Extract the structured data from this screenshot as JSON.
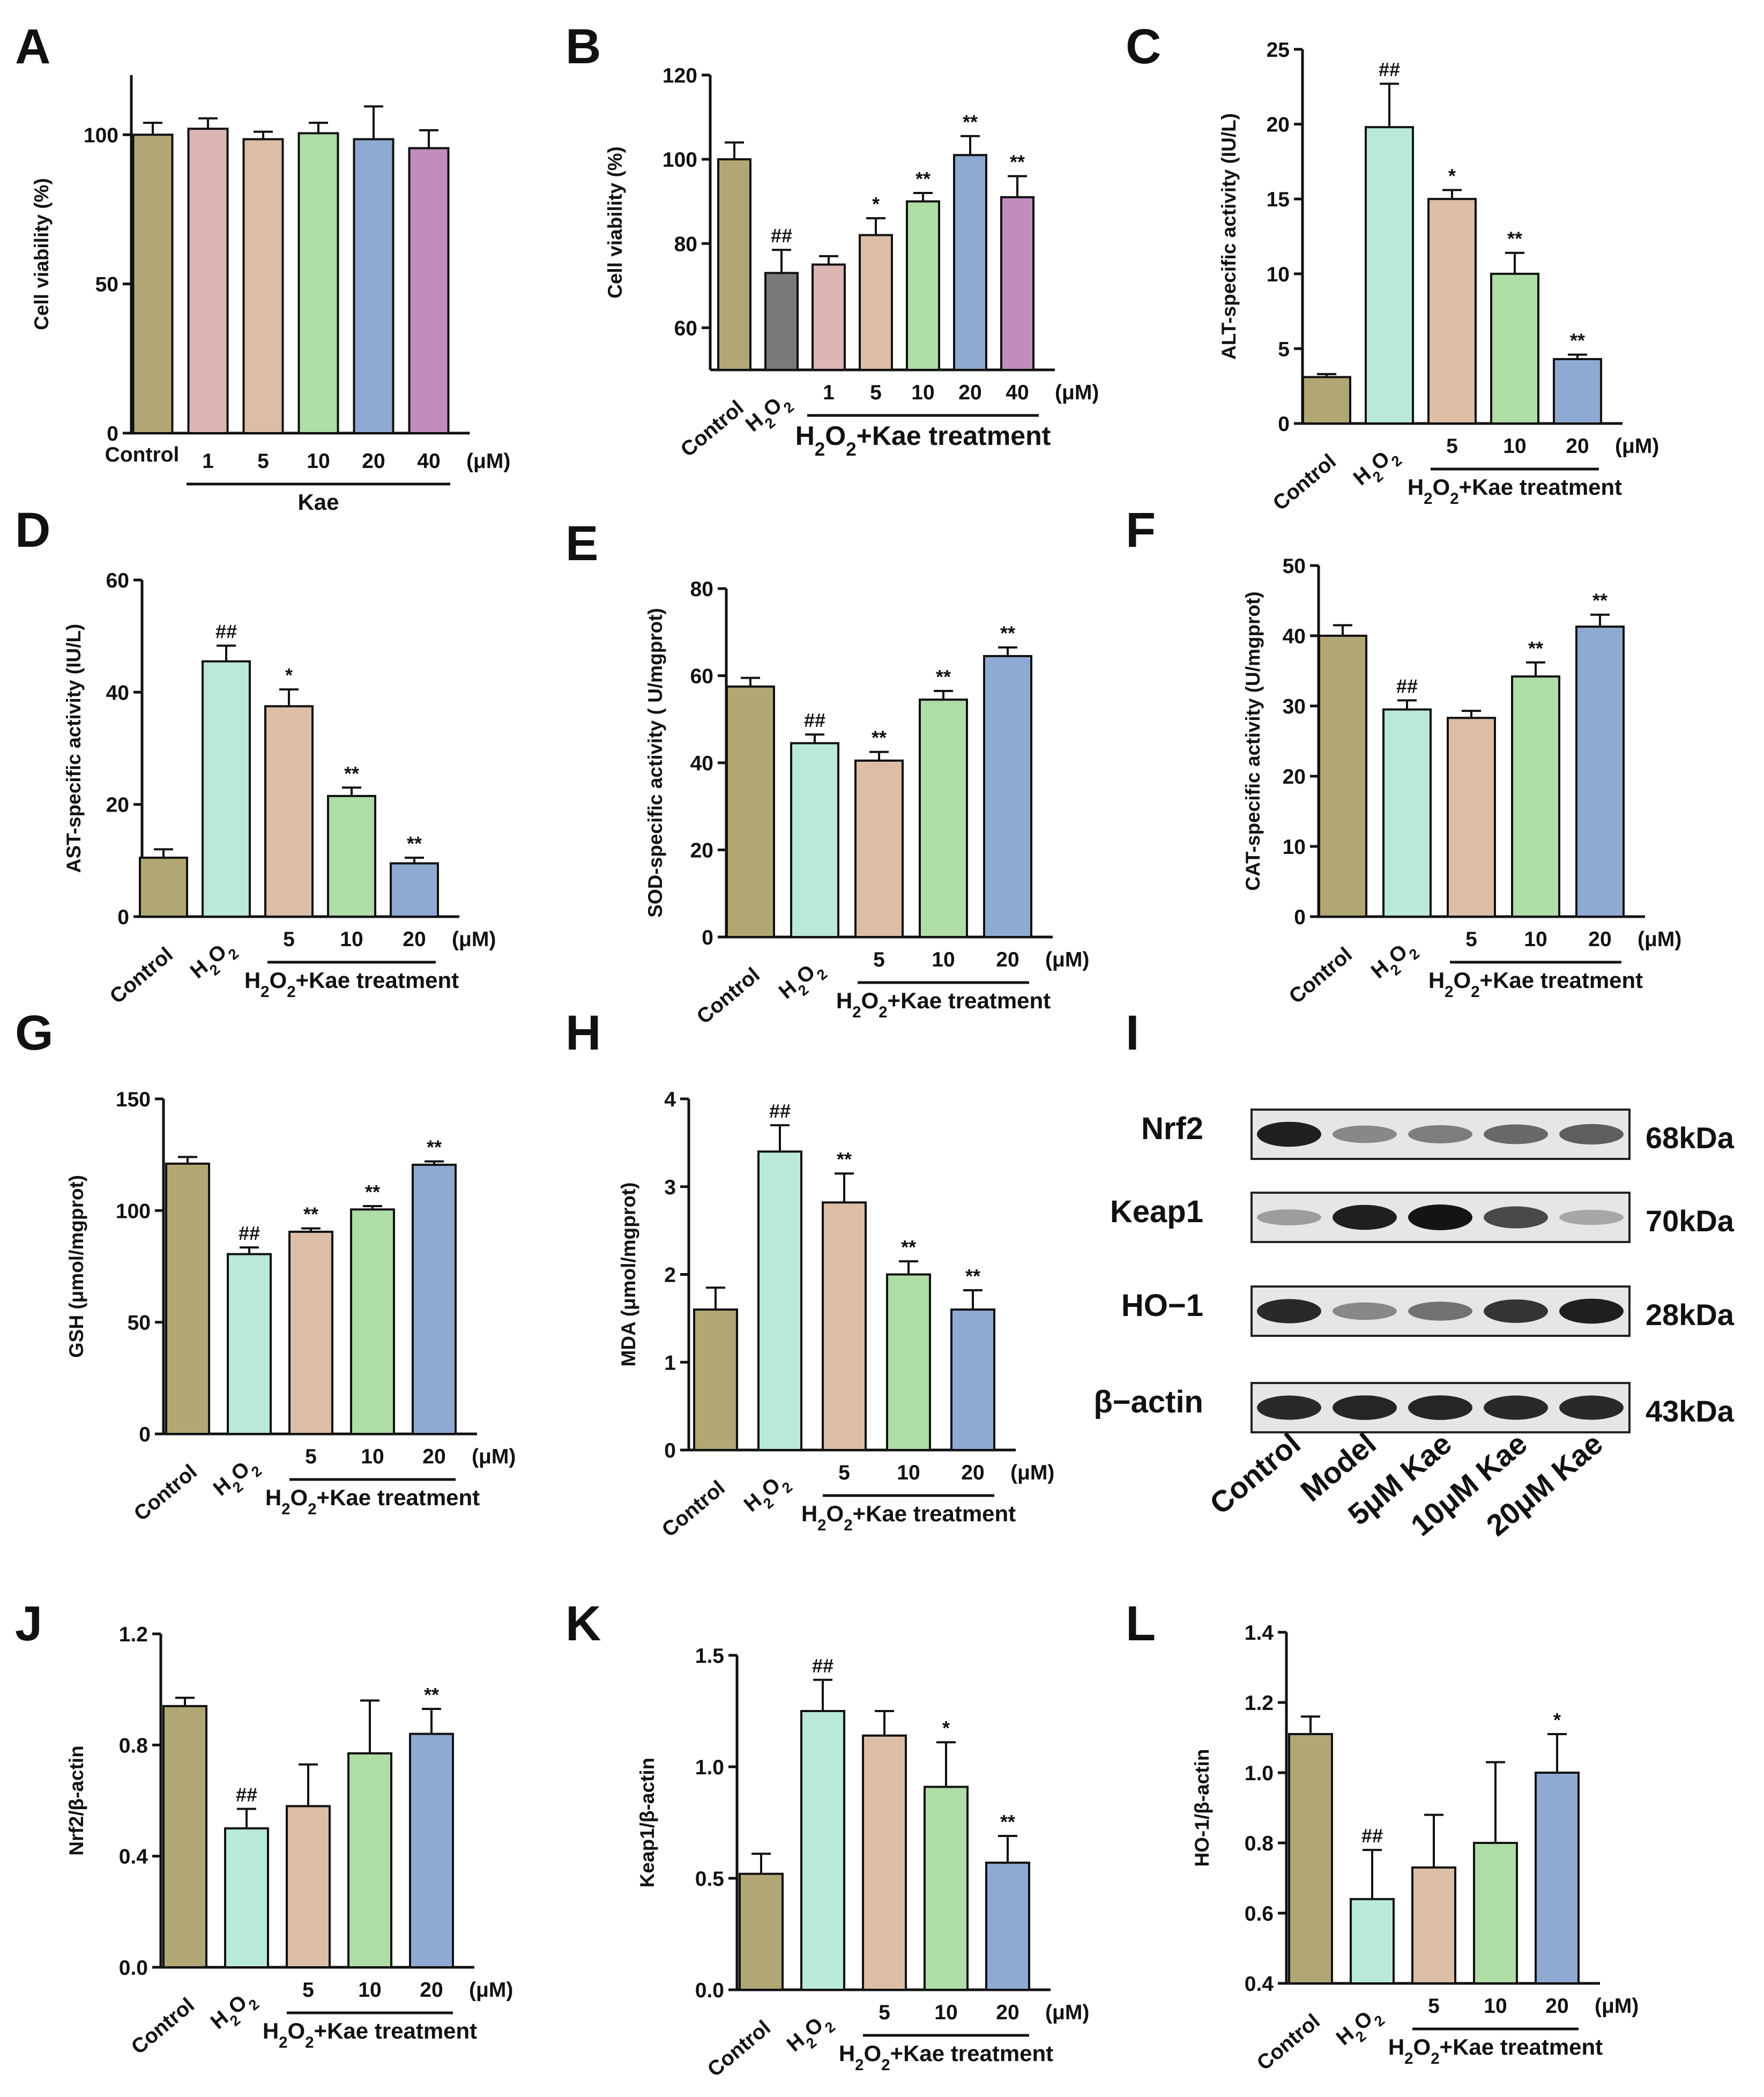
{
  "colors": {
    "control": "#b1a774",
    "h2o2_gray": "#7a7a7a",
    "mint": "#b9e9d9",
    "pink": "#dbb6b4",
    "tan": "#dcbea6",
    "green": "#aedda6",
    "blue": "#8eaad3",
    "purple": "#c18cbe"
  },
  "chart_data": [
    {
      "panel": "A",
      "type": "bar",
      "ylabel": "Cell viability (%)",
      "ylim": [
        0,
        120
      ],
      "yticks": [
        0,
        50,
        100
      ],
      "categories": [
        "Control",
        "1",
        "5",
        "10",
        "20",
        "40"
      ],
      "values": [
        100,
        102,
        98.5,
        100.5,
        98.5,
        95.5
      ],
      "errors": [
        4,
        3.5,
        2.5,
        3.5,
        11,
        6
      ],
      "colors": [
        "control",
        "pink",
        "tan",
        "green",
        "blue",
        "purple"
      ],
      "sig": [
        "",
        "",
        "",
        "",
        "",
        ""
      ],
      "unit": "(μM)",
      "group_label": "Kae"
    },
    {
      "panel": "B",
      "type": "bar",
      "ylabel": "Cell viability (%)",
      "ylim": [
        50,
        120
      ],
      "yticks": [
        60,
        80,
        100,
        120
      ],
      "categories": [
        "Control",
        "H2O2",
        "1",
        "5",
        "10",
        "20",
        "40"
      ],
      "values": [
        100,
        73,
        75,
        82,
        90,
        101,
        91
      ],
      "errors": [
        4,
        5.5,
        2,
        4,
        2,
        4.5,
        5
      ],
      "colors": [
        "control",
        "h2o2_gray",
        "pink",
        "tan",
        "green",
        "blue",
        "purple"
      ],
      "sig": [
        "",
        "##",
        "",
        "*",
        "**",
        "**",
        "**"
      ],
      "unit": "(μM)",
      "group_label": "H2O2+Kae treatment"
    },
    {
      "panel": "C",
      "type": "bar",
      "ylabel": "ALT-specific activity (IU/L)",
      "ylim": [
        0,
        25
      ],
      "yticks": [
        0,
        5,
        10,
        15,
        20,
        25
      ],
      "categories": [
        "Control",
        "H2O2",
        "5",
        "10",
        "20"
      ],
      "values": [
        3.1,
        19.8,
        15.0,
        10.0,
        4.3
      ],
      "errors": [
        0.2,
        2.9,
        0.6,
        1.4,
        0.3
      ],
      "colors": [
        "control",
        "mint",
        "tan",
        "green",
        "blue"
      ],
      "sig": [
        "",
        "##",
        "*",
        "**",
        "**"
      ],
      "unit": "(μM)",
      "group_label": "H2O2+Kae treatment"
    },
    {
      "panel": "D",
      "type": "bar",
      "ylabel": "AST-specific activity (IU/L)",
      "ylim": [
        0,
        60
      ],
      "yticks": [
        0,
        20,
        40,
        60
      ],
      "categories": [
        "Control",
        "H2O2",
        "5",
        "10",
        "20"
      ],
      "values": [
        10.5,
        45.5,
        37.5,
        21.5,
        9.5
      ],
      "errors": [
        1.5,
        2.8,
        3,
        1.5,
        1
      ],
      "colors": [
        "control",
        "mint",
        "tan",
        "green",
        "blue"
      ],
      "sig": [
        "",
        "##",
        "*",
        "**",
        "**"
      ],
      "unit": "(μM)",
      "group_label": "H2O2+Kae treatment"
    },
    {
      "panel": "E",
      "type": "bar",
      "ylabel": "SOD-specific activity ( U/mgprot)",
      "ylim": [
        0,
        80
      ],
      "yticks": [
        0,
        20,
        40,
        60,
        80
      ],
      "categories": [
        "Control",
        "H2O2",
        "5",
        "10",
        "20"
      ],
      "values": [
        57.5,
        44.5,
        40.5,
        54.5,
        64.5
      ],
      "errors": [
        2,
        2,
        2,
        2,
        2
      ],
      "colors": [
        "control",
        "mint",
        "tan",
        "green",
        "blue"
      ],
      "sig": [
        "",
        "##",
        "**",
        "**",
        "**"
      ],
      "unit": "(μM)",
      "group_label": "H2O2+Kae treatment"
    },
    {
      "panel": "F",
      "type": "bar",
      "ylabel": "CAT-specific activity (U/mgprot)",
      "ylim": [
        0,
        50
      ],
      "yticks": [
        0,
        10,
        20,
        30,
        40,
        50
      ],
      "categories": [
        "Control",
        "H2O2",
        "5",
        "10",
        "20"
      ],
      "values": [
        40.0,
        29.5,
        28.3,
        34.2,
        41.3
      ],
      "errors": [
        1.5,
        1.3,
        1,
        2,
        1.7
      ],
      "colors": [
        "control",
        "mint",
        "tan",
        "green",
        "blue"
      ],
      "sig": [
        "",
        "##",
        "",
        "**",
        "**"
      ],
      "unit": "(μM)",
      "group_label": "H2O2+Kae treatment"
    },
    {
      "panel": "G",
      "type": "bar",
      "ylabel": "GSH (μmol/mgprot)",
      "ylim": [
        0,
        150
      ],
      "yticks": [
        0,
        50,
        100,
        150
      ],
      "categories": [
        "Control",
        "H2O2",
        "5",
        "10",
        "20"
      ],
      "values": [
        121,
        80.5,
        90.5,
        100.5,
        120.5
      ],
      "errors": [
        3,
        3,
        1.5,
        1.5,
        1.5
      ],
      "colors": [
        "control",
        "mint",
        "tan",
        "green",
        "blue"
      ],
      "sig": [
        "",
        "##",
        "**",
        "**",
        "**"
      ],
      "unit": "(μM)",
      "group_label": "H2O2+Kae treatment"
    },
    {
      "panel": "H",
      "type": "bar",
      "ylabel": "MDA (μmol/mgprot)",
      "ylim": [
        0,
        4
      ],
      "yticks": [
        0,
        1,
        2,
        3,
        4
      ],
      "categories": [
        "Control",
        "H2O2",
        "5",
        "10",
        "20"
      ],
      "values": [
        1.6,
        3.4,
        2.82,
        2.0,
        1.6
      ],
      "errors": [
        0.25,
        0.3,
        0.33,
        0.15,
        0.22
      ],
      "colors": [
        "control",
        "mint",
        "tan",
        "green",
        "blue"
      ],
      "sig": [
        "",
        "##",
        "**",
        "**",
        "**"
      ],
      "unit": "(μM)",
      "group_label": "H2O2+Kae treatment"
    },
    {
      "panel": "J",
      "type": "bar",
      "ylabel": "Nrf2/β-actin",
      "ylim": [
        0,
        1.2
      ],
      "yticks": [
        0.0,
        0.4,
        0.8,
        1.2
      ],
      "tickdec": 1,
      "categories": [
        "Control",
        "H2O2",
        "5",
        "10",
        "20"
      ],
      "values": [
        0.94,
        0.5,
        0.58,
        0.77,
        0.84
      ],
      "errors": [
        0.03,
        0.07,
        0.15,
        0.19,
        0.09
      ],
      "colors": [
        "control",
        "mint",
        "tan",
        "green",
        "blue"
      ],
      "sig": [
        "",
        "##",
        "",
        "",
        "**"
      ],
      "unit": "(μM)",
      "group_label": "H2O2+Kae treatment"
    },
    {
      "panel": "K",
      "type": "bar",
      "ylabel": "Keap1/β-actin",
      "ylim": [
        0,
        1.5
      ],
      "yticks": [
        0.0,
        0.5,
        1.0,
        1.5
      ],
      "tickdec": 1,
      "categories": [
        "Control",
        "H2O2",
        "5",
        "10",
        "20"
      ],
      "values": [
        0.52,
        1.25,
        1.14,
        0.91,
        0.57
      ],
      "errors": [
        0.09,
        0.14,
        0.11,
        0.2,
        0.12
      ],
      "colors": [
        "control",
        "mint",
        "tan",
        "green",
        "blue"
      ],
      "sig": [
        "",
        "##",
        "",
        "*",
        "**"
      ],
      "unit": "(μM)",
      "group_label": "H2O2+Kae treatment"
    },
    {
      "panel": "L",
      "type": "bar",
      "ylabel": "HO-1/β-actin",
      "ylim": [
        0.4,
        1.4
      ],
      "yticks": [
        0.4,
        0.6,
        0.8,
        1.0,
        1.2,
        1.4
      ],
      "tickdec": 1,
      "categories": [
        "Control",
        "H2O2",
        "5",
        "10",
        "20"
      ],
      "values": [
        1.11,
        0.64,
        0.73,
        0.8,
        1.0
      ],
      "errors": [
        0.05,
        0.14,
        0.15,
        0.23,
        0.11
      ],
      "colors": [
        "control",
        "mint",
        "tan",
        "green",
        "blue"
      ],
      "sig": [
        "",
        "##",
        "",
        "",
        "*"
      ],
      "unit": "(μM)",
      "group_label": "H2O2+Kae treatment"
    }
  ],
  "western_blot": {
    "panel": "I",
    "proteins": [
      {
        "name": "Nrf2",
        "kda": "68kDa",
        "intensity": [
          0.95,
          0.45,
          0.5,
          0.6,
          0.65
        ]
      },
      {
        "name": "Keap1",
        "kda": "70kDa",
        "intensity": [
          0.35,
          0.95,
          1.0,
          0.75,
          0.3
        ]
      },
      {
        "name": "HO−1",
        "kda": "28kDa",
        "intensity": [
          0.9,
          0.45,
          0.55,
          0.85,
          0.95
        ]
      },
      {
        "name": "β−actin",
        "kda": "43kDa",
        "intensity": [
          0.9,
          0.92,
          0.92,
          0.9,
          0.9
        ]
      }
    ],
    "lanes": [
      "Control",
      "Model",
      "5μM Kae",
      "10μM Kae",
      "20μM Kae"
    ]
  }
}
